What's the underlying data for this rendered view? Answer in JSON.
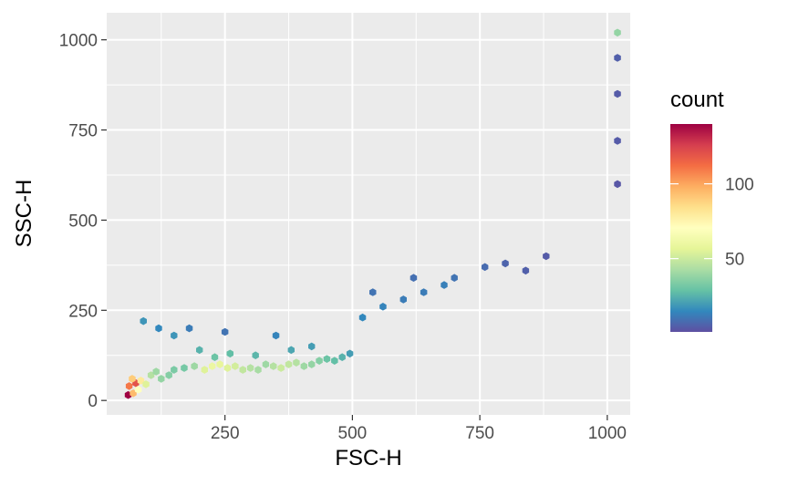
{
  "chart_data": {
    "type": "hexbin",
    "xlabel": "FSC-H",
    "ylabel": "SSC-H",
    "xlim": [
      18,
      1045
    ],
    "ylim": [
      -40,
      1075
    ],
    "x_ticks": [
      250,
      500,
      750,
      1000
    ],
    "y_ticks": [
      0,
      250,
      500,
      750,
      1000
    ],
    "grid": true,
    "legend": {
      "title": "count",
      "position": "right",
      "ticks": [
        50,
        100
      ],
      "range": [
        1,
        140
      ],
      "palette": [
        "#5E4FA2",
        "#3288BD",
        "#66C2A5",
        "#ABDDA4",
        "#E6F598",
        "#FFFFBF",
        "#FEE08B",
        "#FDAE61",
        "#F46D43",
        "#D53E4F",
        "#9E0142"
      ]
    },
    "cells": [
      [
        60,
        15,
        140
      ],
      [
        70,
        20,
        95
      ],
      [
        62,
        40,
        110
      ],
      [
        75,
        48,
        120
      ],
      [
        68,
        60,
        90
      ],
      [
        85,
        55,
        80
      ],
      [
        80,
        30,
        70
      ],
      [
        95,
        45,
        55
      ],
      [
        105,
        70,
        45
      ],
      [
        115,
        80,
        40
      ],
      [
        125,
        60,
        38
      ],
      [
        140,
        70,
        35
      ],
      [
        150,
        85,
        33
      ],
      [
        170,
        90,
        32
      ],
      [
        190,
        95,
        40
      ],
      [
        210,
        85,
        55
      ],
      [
        225,
        95,
        60
      ],
      [
        240,
        100,
        58
      ],
      [
        255,
        90,
        55
      ],
      [
        270,
        95,
        52
      ],
      [
        285,
        85,
        48
      ],
      [
        300,
        90,
        45
      ],
      [
        315,
        85,
        42
      ],
      [
        330,
        100,
        40
      ],
      [
        345,
        95,
        45
      ],
      [
        360,
        90,
        50
      ],
      [
        375,
        100,
        48
      ],
      [
        390,
        105,
        45
      ],
      [
        405,
        95,
        40
      ],
      [
        420,
        100,
        38
      ],
      [
        435,
        110,
        35
      ],
      [
        450,
        115,
        30
      ],
      [
        465,
        110,
        28
      ],
      [
        480,
        120,
        25
      ],
      [
        495,
        130,
        20
      ],
      [
        230,
        120,
        30
      ],
      [
        260,
        130,
        28
      ],
      [
        200,
        140,
        25
      ],
      [
        310,
        125,
        26
      ],
      [
        380,
        140,
        22
      ],
      [
        420,
        150,
        20
      ],
      [
        150,
        180,
        18
      ],
      [
        120,
        200,
        15
      ],
      [
        90,
        220,
        18
      ],
      [
        180,
        200,
        12
      ],
      [
        250,
        190,
        10
      ],
      [
        350,
        180,
        14
      ],
      [
        520,
        230,
        15
      ],
      [
        560,
        260,
        14
      ],
      [
        600,
        280,
        12
      ],
      [
        640,
        300,
        12
      ],
      [
        680,
        320,
        13
      ],
      [
        700,
        340,
        10
      ],
      [
        760,
        370,
        8
      ],
      [
        800,
        380,
        6
      ],
      [
        840,
        360,
        5
      ],
      [
        880,
        400,
        4
      ],
      [
        620,
        340,
        9
      ],
      [
        540,
        300,
        10
      ],
      [
        1020,
        1020,
        38
      ],
      [
        1020,
        950,
        5
      ],
      [
        1020,
        850,
        4
      ],
      [
        1020,
        720,
        4
      ],
      [
        1020,
        600,
        3
      ]
    ]
  }
}
